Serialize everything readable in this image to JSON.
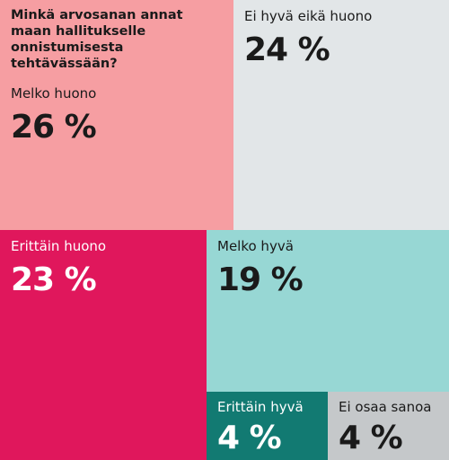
{
  "chart_data": {
    "type": "treemap",
    "title": "Minkä arvosanan annat maan hallitukselle onnistumisesta tehtävässään?",
    "unit": "%",
    "categories": [
      "Melko huono",
      "Ei hyvä eikä huono",
      "Erittäin huono",
      "Melko hyvä",
      "Erittäin hyvä",
      "Ei osaa sanoa"
    ],
    "values": [
      26,
      24,
      23,
      19,
      4,
      4
    ],
    "value_labels": [
      "26 %",
      "24 %",
      "23 %",
      "19 %",
      "4 %",
      "4 %"
    ],
    "colors": [
      "#f69ea2",
      "#e2e6e8",
      "#e0175c",
      "#97d7d4",
      "#127a72",
      "#c5c8ca"
    ],
    "text_colors": [
      "#1a1a1a",
      "#1a1a1a",
      "#ffffff",
      "#1a1a1a",
      "#ffffff",
      "#1a1a1a"
    ]
  }
}
